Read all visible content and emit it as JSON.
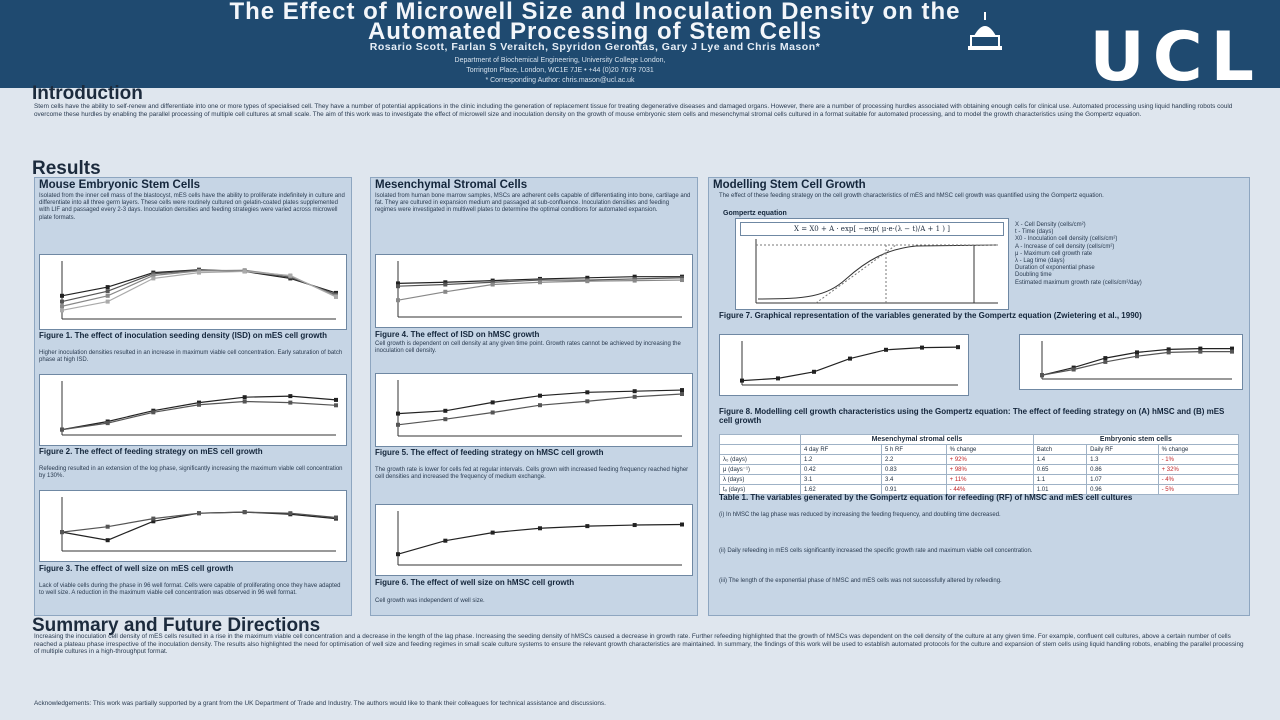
{
  "header": {
    "title_line1": "The Effect of Microwell Size and Inoculation Density on the",
    "title_line2": "Automated Processing of Stem Cells",
    "authors": "Rosario Scott, Farlan S Veraitch, Spyridon Gerontas, Gary J Lye and Chris Mason*",
    "affil_line1": "Department of Biochemical Engineering, University College London,",
    "affil_line2": "Torrington Place, London, WC1E 7JE • +44 (0)20 7679 7031",
    "affil_line3": "* Corresponding Author: chris.mason@ucl.ac.uk",
    "logo_text": "UCL",
    "colors": {
      "header_bg": "#1f4a70",
      "panel_bg": "#c6d5e5",
      "page_bg": "#dfe6ee"
    }
  },
  "introduction": {
    "heading": "Introduction",
    "text": "Stem cells have the ability to self-renew and differentiate into one or more types of specialised cell. They have a number of potential applications in the clinic including the generation of replacement tissue for treating degenerative diseases and damaged organs. However, there are a number of processing hurdles associated with obtaining enough cells for clinical use. Automated processing using liquid handling robots could overcome these hurdles by enabling the parallel processing of multiple cell cultures at small scale. The aim of this work was to investigate the effect of microwell size and inoculation density on the growth of mouse embryonic stem cells and mesenchymal stromal cells cultured in a format suitable for automated processing, and to model the growth characteristics using the Gompertz equation."
  },
  "results": {
    "heading": "Results",
    "panel1": {
      "title": "Mouse Embryonic Stem Cells",
      "text": "Isolated from the inner cell mass of the blastocyst, mES cells have the ability to proliferate indefinitely in culture and differentiate into all three germ layers. These cells were routinely cultured on gelatin-coated plates supplemented with LIF and passaged every 2-3 days. Inoculation densities and feeding strategies were varied across microwell plate formats.",
      "fig1_caption": "Figure 1. The effect of inoculation seeding density (ISD) on mES cell growth",
      "fig1_sub": "Higher inoculation densities resulted in an increase in maximum viable cell concentration. Early saturation of batch phase at high ISD.",
      "fig2_caption": "Figure 2. The effect of feeding strategy on mES cell growth",
      "fig2_sub": "Refeeding resulted in an extension of the log phase, significantly increasing the maximum viable cell concentration by 130%.",
      "fig3_caption": "Figure 3. The effect of well size on mES cell growth",
      "fig3_sub": "Lack of viable cells during the phase in 96 well format. Cells were capable of proliferating once they have adapted to well size. A reduction in the maximum viable cell concentration was observed in 96 well format."
    },
    "panel2": {
      "title": "Mesenchymal Stromal Cells",
      "text": "Isolated from human bone marrow samples, MSCs are adherent cells capable of differentiating into bone, cartilage and fat. They are cultured in expansion medium and passaged at sub-confluence. Inoculation densities and feeding regimes were investigated in multiwell plates to determine the optimal conditions for automated expansion.",
      "fig4_caption": "Figure 4. The effect of ISD on hMSC growth",
      "fig4_sub": "Cell growth is dependent on cell density at any given time point. Growth rates cannot be achieved by increasing the inoculation cell density.",
      "fig5_caption": "Figure 5. The effect of feeding strategy on hMSC cell growth",
      "fig5_sub": "The growth rate is lower for cells fed at regular intervals. Cells grown with increased feeding frequency reached higher cell densities and increased the frequency of medium exchange.",
      "fig6_caption": "Figure 6. The effect of well size on hMSC cell growth",
      "fig6_sub": "Cell growth was independent of well size."
    },
    "panel3": {
      "title": "Modelling Stem Cell Growth",
      "text": "The effect of these feeding strategy on the cell growth characteristics of mES and hMSC cell growth was quantified using the Gompertz equation.",
      "gompertz_label": "Gompertz equation",
      "equation": "X = X0 + A · exp[ −exp( μ·e·(λ − t)/A + 1 ) ]",
      "legend": [
        "X - Cell Density (cells/cm²)",
        "t - Time (days)",
        "X0 - Inoculation cell density (cells/cm²)",
        "A - Increase of cell density (cells/cm²)",
        "μ - Maximum cell growth rate",
        "λ - Lag time (days)",
        "Duration of exponential phase",
        "Doubling time",
        "Estimated maximum growth rate (cells/cm²/day)"
      ],
      "fig7_caption": "Figure 7. Graphical representation of the variables generated by the Gompertz equation (Zwietering et al., 1990)",
      "fig8_caption": "Figure 8. Modelling cell growth characteristics using the Gompertz equation: The effect of feeding strategy on (A) hMSC and (B) mES cell growth",
      "table": {
        "group_headers": [
          "Mesenchymal stromal cells",
          "Embryonic stem cells"
        ],
        "columns": [
          "",
          "4 day RF",
          "5 h RF",
          "% change",
          "Batch",
          "Daily RF",
          "% change"
        ],
        "rows": [
          [
            "λ₀ (days)",
            "1.2",
            "2.2",
            "+ 92%",
            "1.4",
            "1.3",
            "- 1%"
          ],
          [
            "μ (days⁻¹)",
            "0.42",
            "0.83",
            "+ 98%",
            "0.65",
            "0.86",
            "+ 32%"
          ],
          [
            "λ (days)",
            "3.1",
            "3.4",
            "+ 11%",
            "1.1",
            "1.07",
            "- 4%"
          ],
          [
            "tₔ (days)",
            "1.62",
            "0.91",
            "- 44%",
            "1.01",
            "0.96",
            "- 5%"
          ]
        ],
        "caption": "Table 1. The variables generated by the Gompertz equation for refeeding (RF) of hMSC and mES cell cultures"
      },
      "notes": [
        "(i) In hMSC the lag phase was reduced by increasing the feeding frequency, and doubling time decreased.",
        "(ii) Daily refeeding in mES cells significantly increased the specific growth rate and maximum viable cell concentration.",
        "(iii) The length of the exponential phase of hMSC and mES cells was not successfully altered by refeeding."
      ]
    }
  },
  "summary": {
    "heading": "Summary and Future Directions",
    "text": "Increasing the inoculation cell density of mES cells resulted in a rise in the maximum viable cell concentration and a decrease in the length of the lag phase. Increasing the seeding density of hMSCs caused a decrease in growth rate. Further refeeding highlighted that the growth of hMSCs was dependent on the cell density of the culture at any given time. For example, confluent cell cultures, above a certain number of cells reached a plateau phase irrespective of the inoculation density. The results also highlighted the need for optimisation of well size and feeding regimes in small scale culture systems to ensure the relevant growth characteristics are maintained. In summary, the findings of this work will be used to establish automated protocols for the culture and expansion of stem cells using liquid handling robots, enabling the parallel processing of multiple cultures in a high-throughput format.",
    "ack": "Acknowledgements: This work was partially supported by a grant from the UK Department of Trade and Industry. The authors would like to thank their colleagues for technical assistance and discussions."
  },
  "chart_data": [
    {
      "type": "line",
      "series": [
        {
          "values": [
            40,
            55,
            80,
            85,
            82,
            70,
            45
          ]
        },
        {
          "values": [
            30,
            48,
            78,
            84,
            83,
            72,
            42
          ]
        },
        {
          "values": [
            22,
            40,
            75,
            83,
            84,
            74,
            40
          ]
        },
        {
          "values": [
            15,
            30,
            70,
            80,
            82,
            75,
            38
          ]
        }
      ],
      "ylim": [
        0,
        100
      ]
    },
    {
      "type": "line",
      "series": [
        {
          "values": [
            10,
            25,
            45,
            60,
            70,
            72,
            65
          ]
        },
        {
          "values": [
            10,
            22,
            42,
            56,
            62,
            60,
            55
          ]
        }
      ],
      "ylim": [
        0,
        100
      ]
    },
    {
      "type": "line",
      "series": [
        {
          "values": [
            35,
            20,
            55,
            70,
            72,
            68,
            60
          ]
        },
        {
          "values": [
            35,
            45,
            60,
            70,
            72,
            70,
            62
          ]
        }
      ],
      "ylim": [
        0,
        100
      ]
    },
    {
      "type": "line",
      "series": [
        {
          "values": [
            60,
            62,
            65,
            68,
            70,
            72,
            72
          ]
        },
        {
          "values": [
            55,
            58,
            62,
            66,
            66,
            68,
            70
          ]
        },
        {
          "values": [
            30,
            45,
            58,
            62,
            64,
            65,
            66
          ]
        }
      ],
      "ylim": [
        0,
        100
      ]
    },
    {
      "type": "line",
      "series": [
        {
          "values": [
            40,
            45,
            60,
            72,
            78,
            80,
            82
          ]
        },
        {
          "values": [
            20,
            30,
            42,
            55,
            62,
            70,
            75
          ]
        }
      ],
      "ylim": [
        0,
        100
      ]
    },
    {
      "type": "line",
      "series": [
        {
          "values": [
            20,
            45,
            60,
            68,
            72,
            74,
            75
          ]
        }
      ],
      "ylim": [
        0,
        100
      ]
    },
    {
      "type": "line",
      "series": [
        {
          "values": [
            10,
            15,
            30,
            60,
            80,
            85,
            86
          ]
        }
      ],
      "ylim": [
        0,
        100
      ]
    },
    {
      "type": "line",
      "series": [
        {
          "values": [
            10,
            30,
            55,
            70,
            78,
            80,
            80
          ]
        },
        {
          "values": [
            10,
            25,
            45,
            60,
            70,
            72,
            72
          ]
        }
      ],
      "ylim": [
        0,
        100
      ]
    },
    {
      "type": "line",
      "series": [
        {
          "values": [
            20,
            25,
            40,
            55,
            65,
            70,
            72
          ]
        },
        {
          "values": [
            20,
            30,
            45,
            55,
            62,
            64,
            64
          ]
        }
      ],
      "ylim": [
        0,
        100
      ]
    }
  ]
}
